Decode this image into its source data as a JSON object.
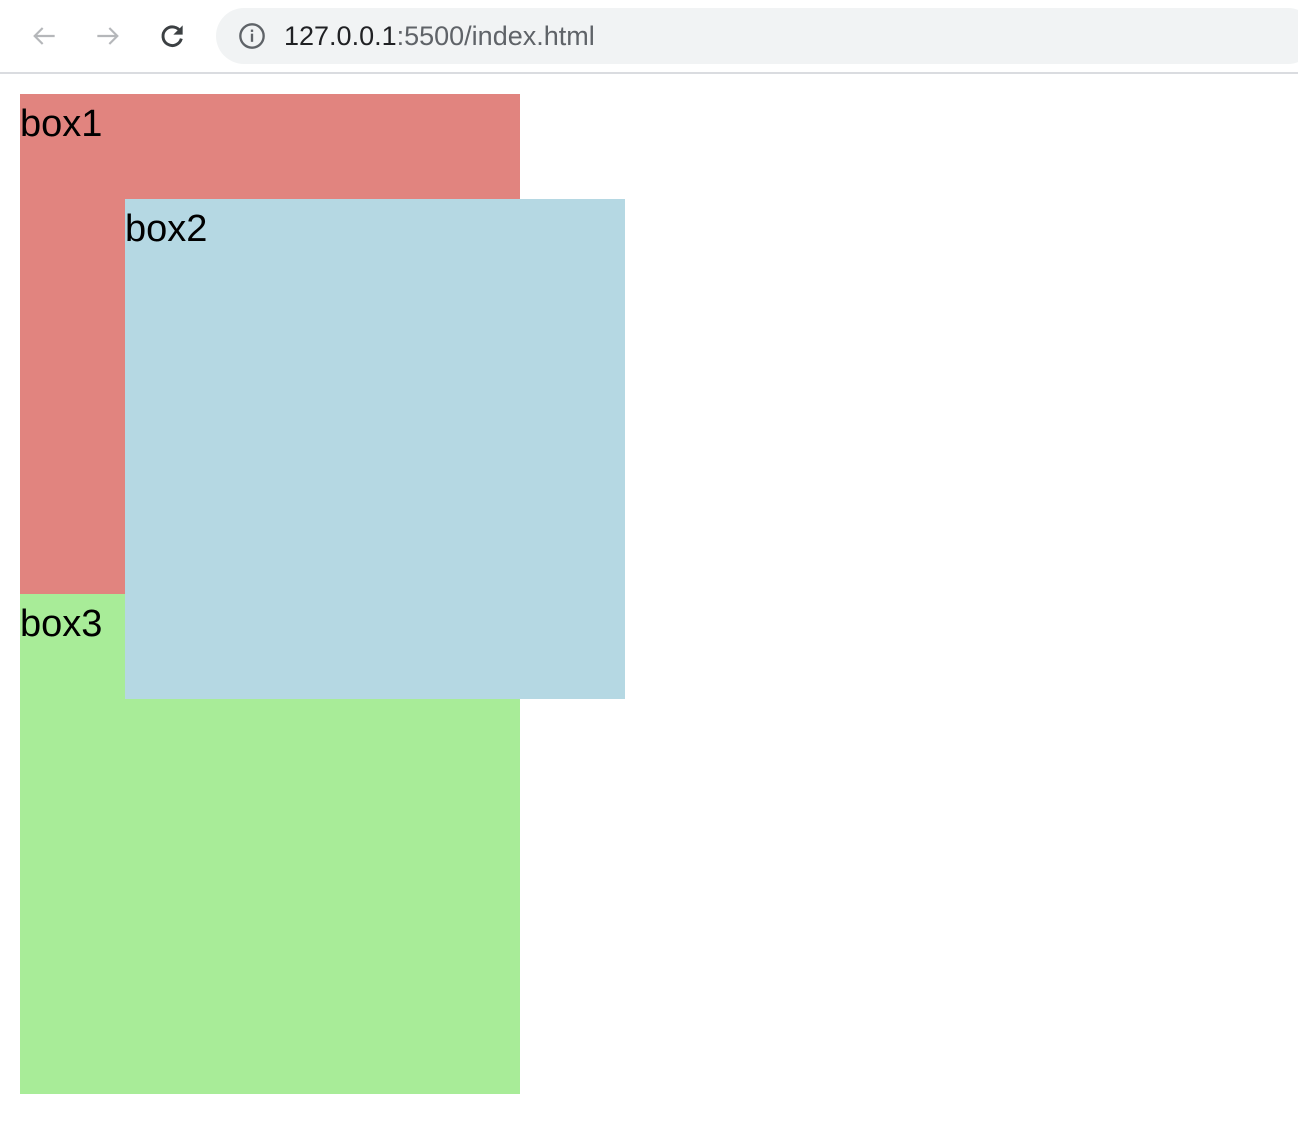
{
  "browser": {
    "url_host": "127.0.0.1",
    "url_rest": ":5500/index.html",
    "icons": [
      "back-arrow-icon",
      "forward-arrow-icon",
      "reload-icon",
      "info-icon"
    ]
  },
  "boxes": [
    {
      "label": "box1",
      "color": "#e1847f"
    },
    {
      "label": "box2",
      "color": "#b5d8e3"
    },
    {
      "label": "box3",
      "color": "#a8ec98"
    }
  ]
}
